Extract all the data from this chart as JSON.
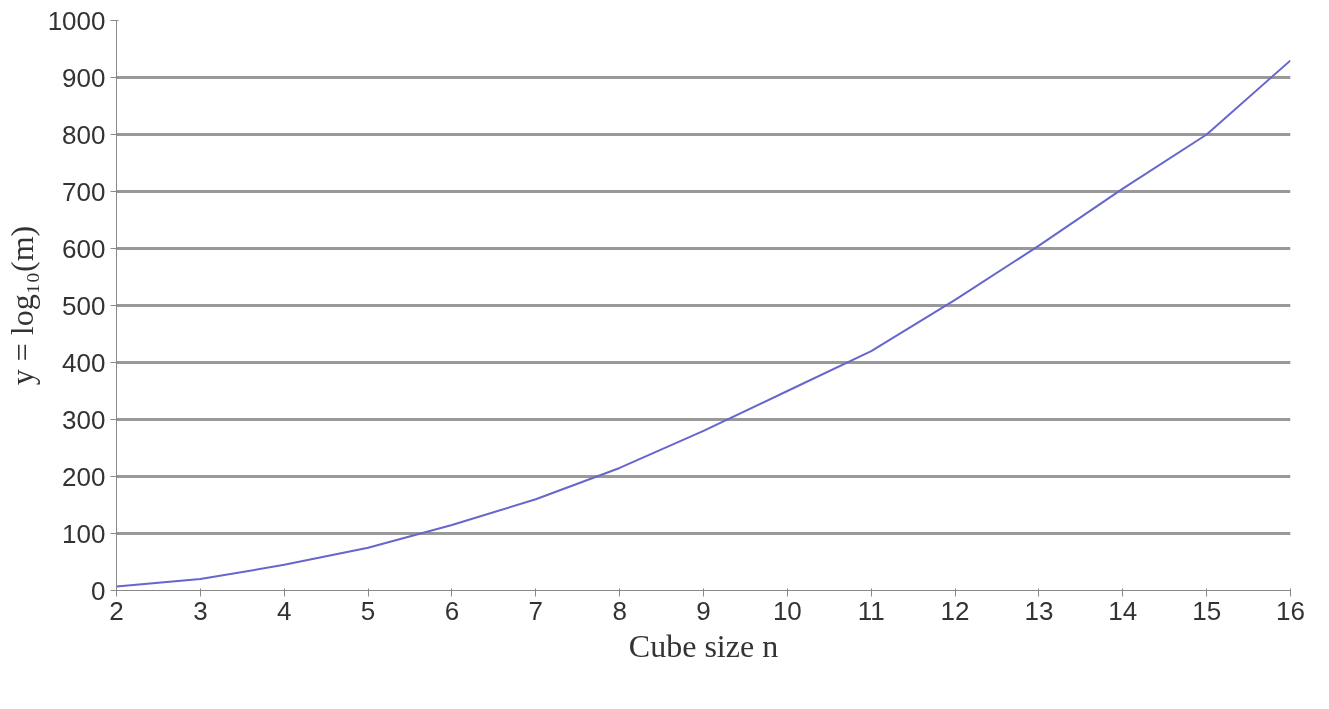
{
  "chart_data": {
    "type": "line",
    "xlabel": "Cube size n",
    "ylabel": "y = log₁₀(m)",
    "x": [
      2,
      3,
      4,
      5,
      6,
      7,
      8,
      9,
      10,
      11,
      12,
      13,
      14,
      15,
      16
    ],
    "series": [
      {
        "color": "#6666cc",
        "values": [
          7,
          20,
          45,
          75,
          115,
          160,
          215,
          280,
          350,
          420,
          510,
          605,
          705,
          800,
          930
        ]
      }
    ],
    "xlim": [
      2,
      16
    ],
    "xticks": [
      2,
      3,
      4,
      5,
      6,
      7,
      8,
      9,
      10,
      11,
      12,
      13,
      14,
      15,
      16
    ],
    "ylim": [
      0,
      1000
    ],
    "yticks": [
      0,
      100,
      200,
      300,
      400,
      500,
      600,
      700,
      800,
      900,
      1000
    ],
    "grid": "y",
    "marker": "none",
    "line_style": "solid"
  }
}
